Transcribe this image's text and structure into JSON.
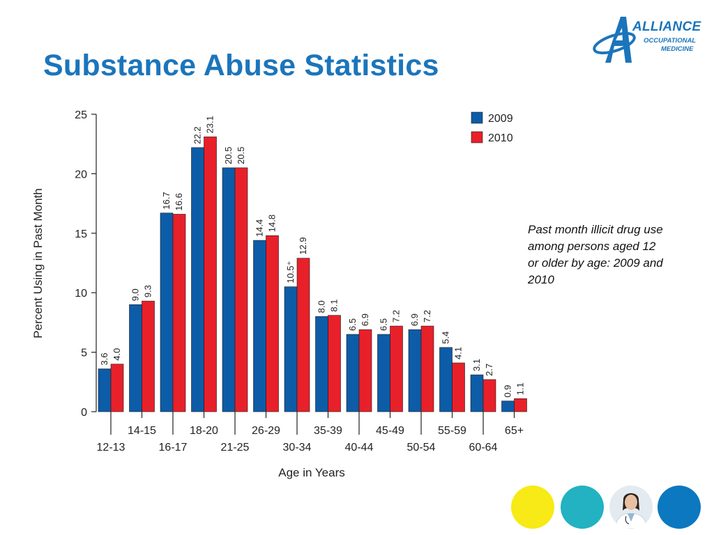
{
  "slide": {
    "title": "Substance Abuse Statistics",
    "caption": "Past month illicit drug use among persons aged 12 or older by age: 2009 and 2010"
  },
  "logo": {
    "line1": "ALLIANCE",
    "line2": "OCCUPATIONAL",
    "line3": "MEDICINE",
    "color": "#1b75bb"
  },
  "decorations": [
    "yellow-circle",
    "teal-circle",
    "doctor-photo-circle",
    "blue-circle"
  ],
  "chart_data": {
    "type": "bar",
    "xlabel": "Age in Years",
    "ylabel": "Percent Using in Past Month",
    "ylim": [
      0,
      25
    ],
    "yticks": [
      0,
      5,
      10,
      15,
      20,
      25
    ],
    "categories": [
      "12-13",
      "14-15",
      "16-17",
      "18-20",
      "21-25",
      "26-29",
      "30-34",
      "35-39",
      "40-44",
      "45-49",
      "50-54",
      "55-59",
      "60-64",
      "65+"
    ],
    "series": [
      {
        "name": "2009",
        "color": "#0d5ca8",
        "values": [
          3.6,
          9.0,
          16.7,
          22.2,
          20.5,
          14.4,
          10.5,
          8.0,
          6.5,
          6.5,
          6.9,
          5.4,
          3.1,
          0.9
        ],
        "labels": [
          "3.6",
          "9.0",
          "16.7",
          "22.2",
          "20.5",
          "14.4",
          "10.5⁺",
          "8.0",
          "6.5",
          "6.5",
          "6.9",
          "5.4",
          "3.1",
          "0.9"
        ]
      },
      {
        "name": "2010",
        "color": "#e8202a",
        "values": [
          4.0,
          9.3,
          16.6,
          23.1,
          20.5,
          14.8,
          12.9,
          8.1,
          6.9,
          7.2,
          7.2,
          4.1,
          2.7,
          1.1
        ],
        "labels": [
          "4.0",
          "9.3",
          "16.6",
          "23.1",
          "20.5",
          "14.8",
          "12.9",
          "8.1",
          "6.9",
          "7.2",
          "7.2",
          "4.1",
          "2.7",
          "1.1"
        ]
      }
    ],
    "legend_position": "top-right",
    "grid": false
  }
}
